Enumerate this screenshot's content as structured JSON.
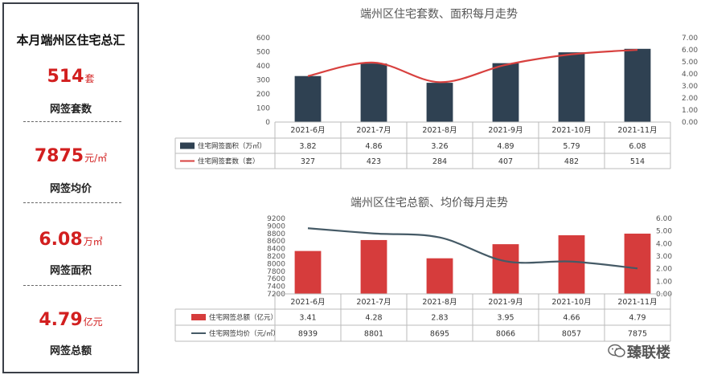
{
  "summary": {
    "title": "本月端州区住宅总汇",
    "metrics": [
      {
        "value": "514",
        "unit": "套",
        "label": "网签套数"
      },
      {
        "value": "7875",
        "unit": "元/㎡",
        "label": "网签均价"
      },
      {
        "value": "6.08",
        "unit": "万㎡",
        "label": "网签面积"
      },
      {
        "value": "4.79",
        "unit": "亿元",
        "label": "网签总额"
      }
    ]
  },
  "brand": {
    "name": "臻联楼"
  },
  "colors": {
    "dark_bar": "#2f4152",
    "red": "#d8413f",
    "bar_red": "#d63c3c",
    "line_dark": "#455a66"
  },
  "chart_data": [
    {
      "type": "bar",
      "title": "端州区住宅套数、面积每月走势",
      "categories": [
        "2021-6月",
        "2021-7月",
        "2021-8月",
        "2021-9月",
        "2021-10月",
        "2021-11月"
      ],
      "left_ylim": [
        0,
        600
      ],
      "left_ticks": [
        "600",
        "500",
        "400",
        "300",
        "200",
        "100",
        "0"
      ],
      "right_ylim": [
        0,
        7
      ],
      "right_ticks": [
        "7.00",
        "6.00",
        "5.00",
        "4.00",
        "3.00",
        "2.00",
        "1.00",
        "0.00"
      ],
      "series": [
        {
          "name": "住宅网签面积（万㎡）",
          "kind": "bar",
          "axis": "right",
          "values": [
            3.82,
            4.86,
            3.26,
            4.89,
            5.79,
            6.08
          ]
        },
        {
          "name": "住宅网签套数（套）",
          "kind": "line",
          "axis": "left",
          "values": [
            327,
            423,
            284,
            407,
            482,
            514
          ]
        }
      ],
      "table_rows": [
        [
          "3.82",
          "4.86",
          "3.26",
          "4.89",
          "5.79",
          "6.08"
        ],
        [
          "327",
          "423",
          "284",
          "407",
          "482",
          "514"
        ]
      ]
    },
    {
      "type": "bar",
      "title": "端州区住宅总额、均价每月走势",
      "categories": [
        "2021-6月",
        "2021-7月",
        "2021-8月",
        "2021-9月",
        "2021-10月",
        "2021-11月"
      ],
      "left_ylim": [
        7200,
        9200
      ],
      "left_ticks": [
        "9200",
        "9000",
        "8800",
        "8600",
        "8400",
        "8200",
        "8000",
        "7800",
        "7600",
        "7400",
        "7200"
      ],
      "right_ylim": [
        0,
        6
      ],
      "right_ticks": [
        "6.00",
        "5.00",
        "4.00",
        "3.00",
        "2.00",
        "1.00",
        "0.00"
      ],
      "series": [
        {
          "name": "住宅网签总额（亿元）",
          "kind": "bar",
          "axis": "right",
          "values": [
            3.41,
            4.28,
            2.83,
            3.95,
            4.66,
            4.79
          ]
        },
        {
          "name": "住宅网签均价（元/㎡）",
          "kind": "line",
          "axis": "left",
          "values": [
            8939,
            8801,
            8695,
            8066,
            8057,
            7875
          ]
        }
      ],
      "table_rows": [
        [
          "3.41",
          "4.28",
          "2.83",
          "3.95",
          "4.66",
          "4.79"
        ],
        [
          "8939",
          "8801",
          "8695",
          "8066",
          "8057",
          "7875"
        ]
      ]
    }
  ]
}
